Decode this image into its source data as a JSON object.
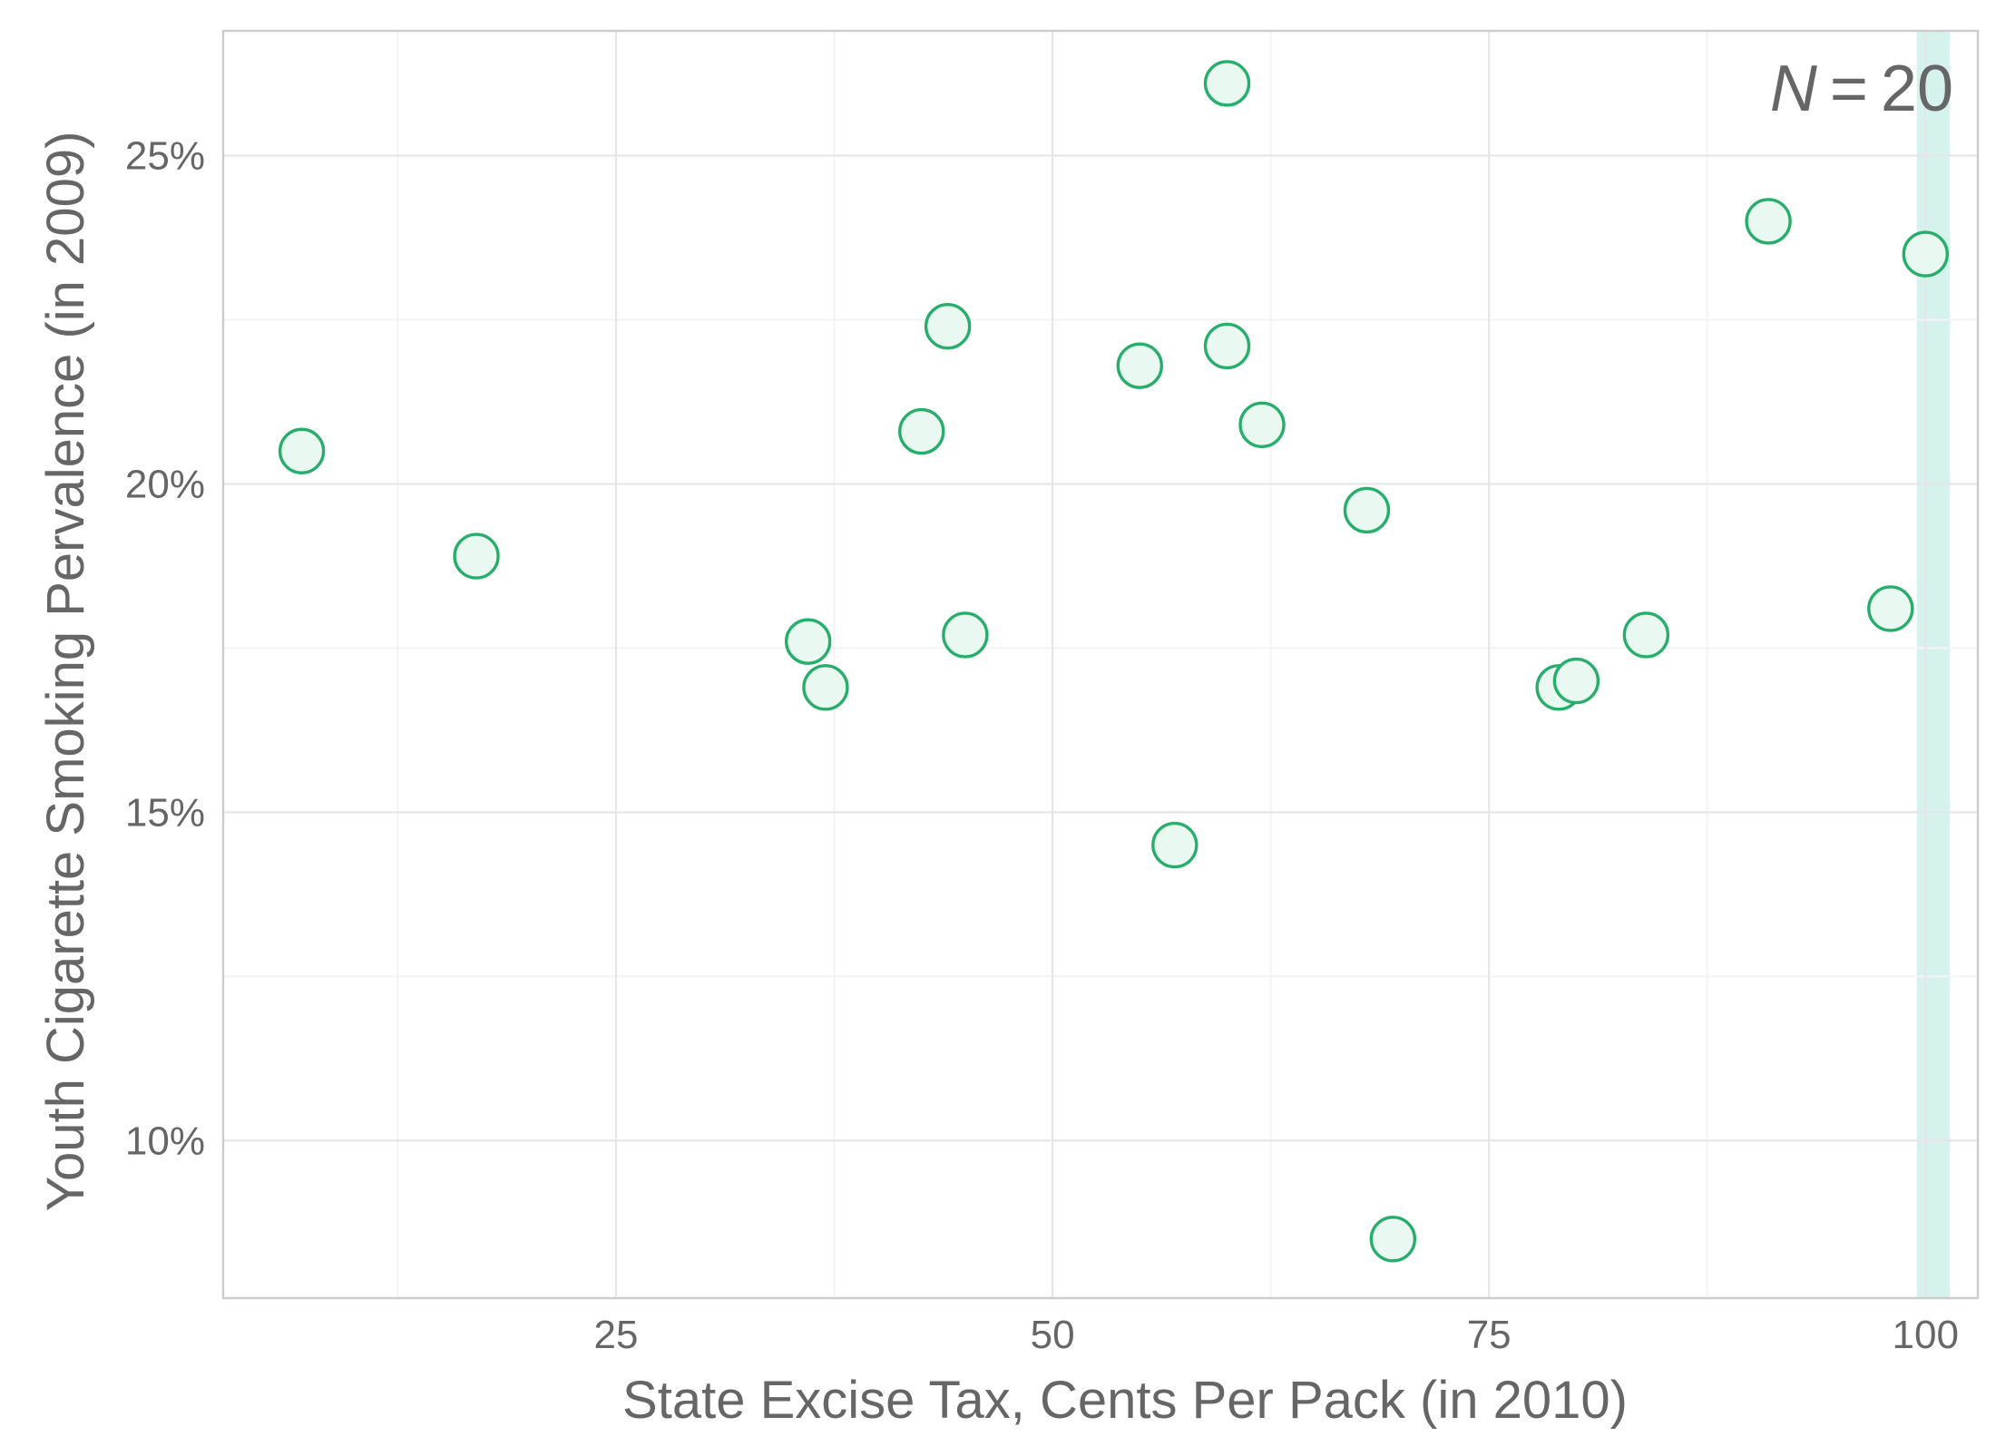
{
  "chart_data": {
    "type": "scatter",
    "xlabel": "State Excise Tax, Cents Per Pack (in 2010)",
    "ylabel": "Youth Cigarette Smoking Pervalence (in 2009)",
    "n_label": {
      "variable": "N",
      "operator": "=",
      "value": "20"
    },
    "xlim": [
      2.5,
      103
    ],
    "ylim": [
      0.076,
      0.269
    ],
    "x_ticks": [
      25,
      50,
      75,
      100
    ],
    "x_tick_labels": [
      "25",
      "50",
      "75",
      "100"
    ],
    "y_ticks": [
      0.1,
      0.15,
      0.2,
      0.25
    ],
    "y_tick_labels": [
      "10%",
      "15%",
      "20%",
      "25%"
    ],
    "x_minor_ticks": [
      12.5,
      37.5,
      62.5,
      87.5
    ],
    "y_minor_ticks": [
      0.125,
      0.175,
      0.225
    ],
    "grid": true,
    "highlight_band": {
      "x_from": 99.5,
      "x_to": 101.4,
      "color": "#d5f2ec"
    },
    "marker": {
      "fill": "#e9f8f0",
      "stroke": "#27ae6b"
    },
    "colors": {
      "panel_border": "#cccccc",
      "text": "#666666"
    },
    "points": [
      {
        "x": 7,
        "y": 0.205
      },
      {
        "x": 17,
        "y": 0.189
      },
      {
        "x": 36,
        "y": 0.176
      },
      {
        "x": 37,
        "y": 0.169
      },
      {
        "x": 42.5,
        "y": 0.208
      },
      {
        "x": 44,
        "y": 0.224
      },
      {
        "x": 45,
        "y": 0.177
      },
      {
        "x": 55,
        "y": 0.218
      },
      {
        "x": 57,
        "y": 0.145
      },
      {
        "x": 60,
        "y": 0.261
      },
      {
        "x": 60,
        "y": 0.221
      },
      {
        "x": 62,
        "y": 0.209
      },
      {
        "x": 68,
        "y": 0.196
      },
      {
        "x": 69.5,
        "y": 0.085
      },
      {
        "x": 79,
        "y": 0.169
      },
      {
        "x": 80,
        "y": 0.17
      },
      {
        "x": 84,
        "y": 0.177
      },
      {
        "x": 91,
        "y": 0.24
      },
      {
        "x": 98,
        "y": 0.181
      },
      {
        "x": 100,
        "y": 0.235
      }
    ]
  }
}
